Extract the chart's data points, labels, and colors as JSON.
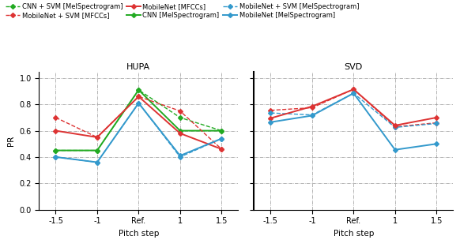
{
  "x_labels": [
    "-1.5",
    "-1",
    "Ref.",
    "1",
    "1.5"
  ],
  "x_vals": [
    0,
    1,
    2,
    3,
    4
  ],
  "title_left": "HUPA",
  "title_right": "SVD",
  "xlabel": "Pitch step",
  "ylabel": "PR",
  "ylim": [
    0.0,
    1.05
  ],
  "yticks": [
    0.0,
    0.2,
    0.4,
    0.6,
    0.8,
    1.0
  ],
  "series": [
    {
      "label": "CNN + SVM [MelSpectrogram]",
      "color": "#22aa22",
      "linestyle": "--",
      "marker": "D",
      "markersize": 3,
      "linewidth": 1.0,
      "hupa": [
        0.45,
        0.45,
        0.91,
        0.7,
        0.6
      ],
      "svd": [
        null,
        null,
        null,
        null,
        null
      ]
    },
    {
      "label": "CNN [MelSpectrogram]",
      "color": "#22aa22",
      "linestyle": "-",
      "marker": "D",
      "markersize": 3,
      "linewidth": 1.4,
      "hupa": [
        0.45,
        0.45,
        0.91,
        0.6,
        0.6
      ],
      "svd": [
        null,
        null,
        null,
        null,
        null
      ]
    },
    {
      "label": "MobileNet + SVM [MFCCs]",
      "color": "#dd3333",
      "linestyle": "--",
      "marker": "D",
      "markersize": 3,
      "linewidth": 1.0,
      "hupa": [
        0.7,
        0.55,
        0.86,
        0.75,
        0.46
      ],
      "svd": [
        0.755,
        0.775,
        0.915,
        0.63,
        0.66
      ]
    },
    {
      "label": "MobileNet + SVM [MelSpectrogram]",
      "color": "#3399cc",
      "linestyle": "--",
      "marker": "D",
      "markersize": 3,
      "linewidth": 1.0,
      "hupa": [
        0.4,
        0.36,
        0.81,
        0.4,
        0.54
      ],
      "svd": [
        0.735,
        0.72,
        0.885,
        0.625,
        0.655
      ]
    },
    {
      "label": "MobileNet [MFCCs]",
      "color": "#dd3333",
      "linestyle": "-",
      "marker": "D",
      "markersize": 3,
      "linewidth": 1.4,
      "hupa": [
        0.6,
        0.55,
        0.86,
        0.58,
        0.46
      ],
      "svd": [
        0.695,
        0.785,
        0.915,
        0.64,
        0.7
      ]
    },
    {
      "label": "MobileNet [MelSpectrogram]",
      "color": "#3399cc",
      "linestyle": "-",
      "marker": "D",
      "markersize": 3,
      "linewidth": 1.4,
      "hupa": [
        0.4,
        0.36,
        0.81,
        0.41,
        0.54
      ],
      "svd": [
        0.665,
        0.715,
        0.885,
        0.455,
        0.5
      ]
    }
  ],
  "background_color": "#ffffff",
  "grid_color": "#999999",
  "grid_linestyle": "-.",
  "grid_linewidth": 0.5,
  "divider_color": "#000000"
}
